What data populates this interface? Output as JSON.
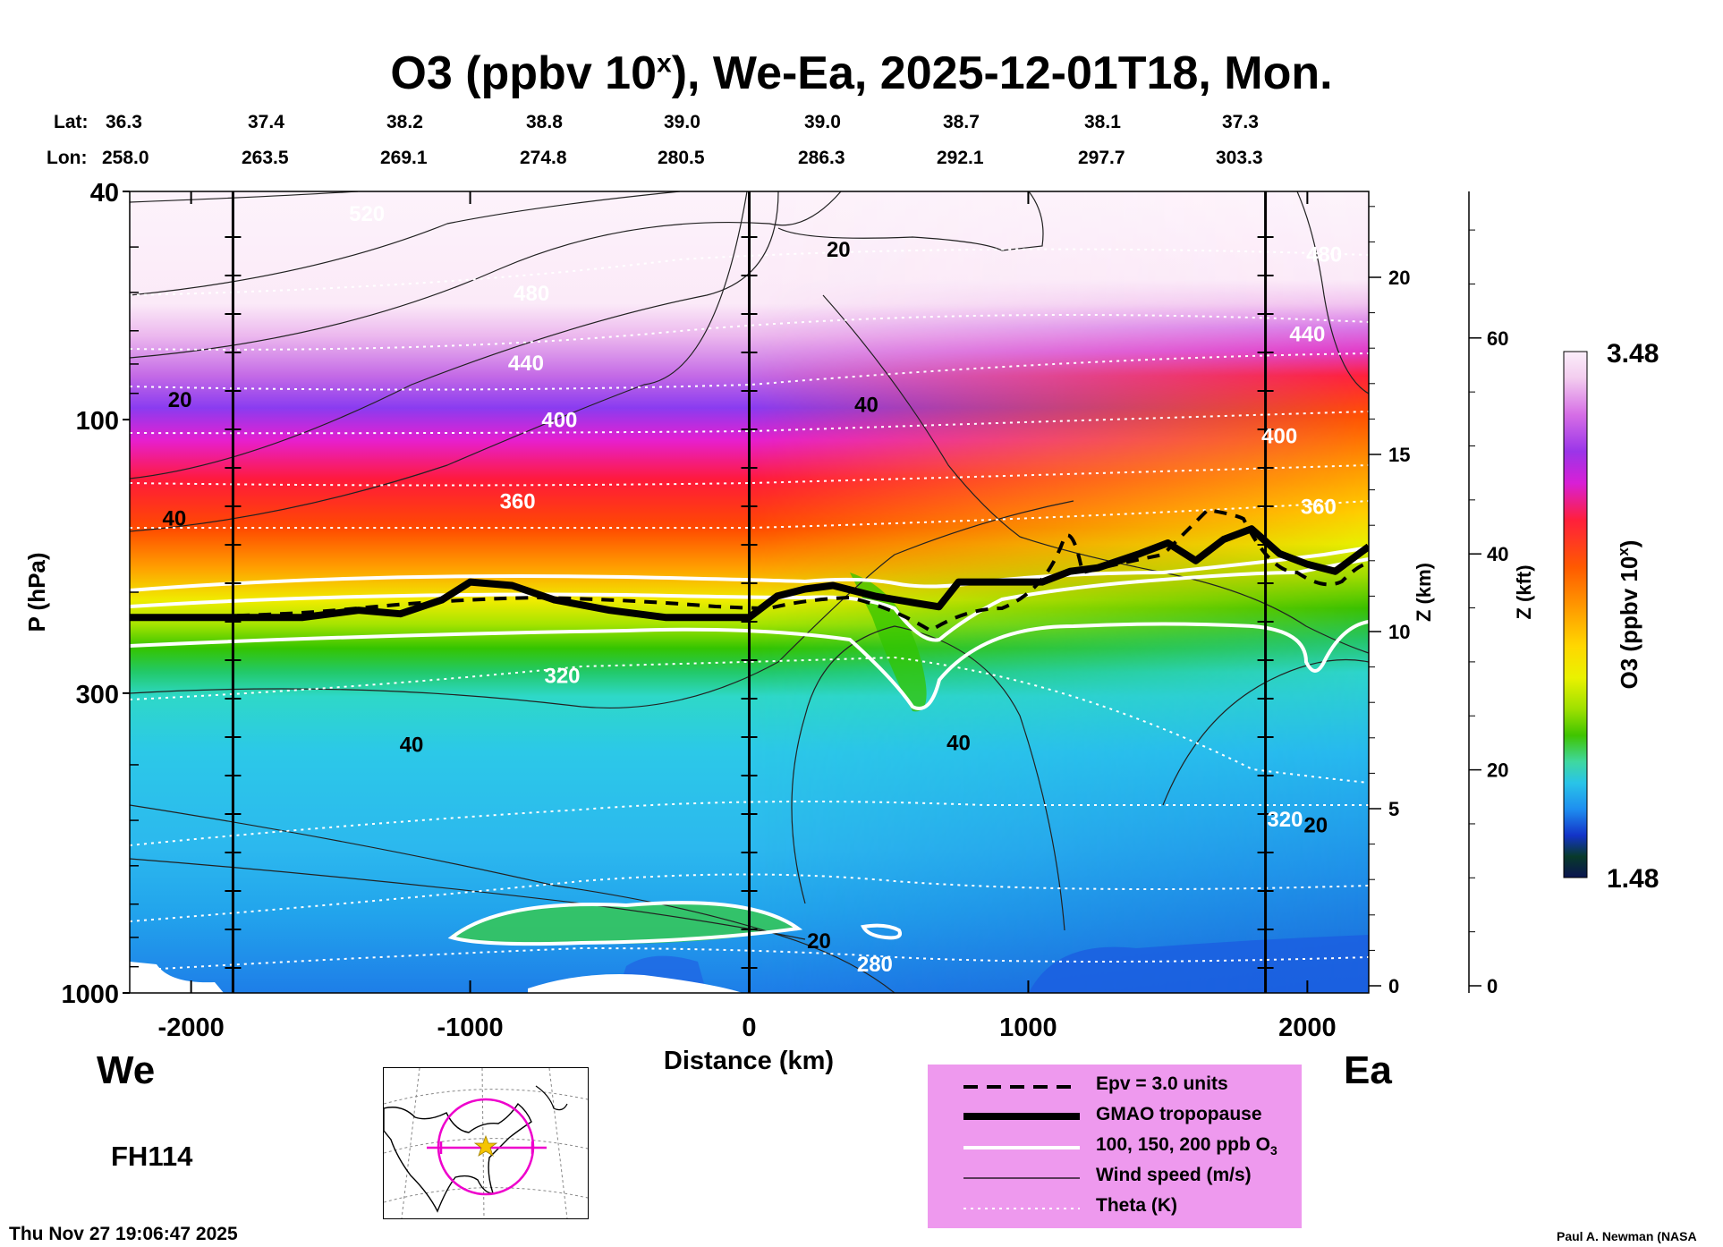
{
  "title": "O3 (ppbv 10",
  "title_sup": "x",
  "title_rest": "), We-Ea, 2025-12-01T18, Mon.",
  "lat_label": "Lat:",
  "lon_label": "Lon:",
  "lats": [
    "36.3",
    "37.4",
    "38.2",
    "38.8",
    "39.0",
    "39.0",
    "38.7",
    "38.1",
    "37.3"
  ],
  "lons": [
    "258.0",
    "263.5",
    "269.1",
    "274.8",
    "280.5",
    "286.3",
    "292.1",
    "297.7",
    "303.3"
  ],
  "west_label": "We",
  "east_label": "Ea",
  "forecast_hour": "FH114",
  "timestamp": "Thu Nov 27 19:06:47 2025",
  "credit": "Paul A. Newman (NASA",
  "colors": {
    "tropopause": "#000000",
    "theta": "#ffffff",
    "legend_bg": "#ee99ee",
    "star": "#f5c400",
    "circle": "#ee00cc"
  },
  "legend": [
    {
      "label": "Epv = 3.0 units",
      "style": "dashed"
    },
    {
      "label": "GMAO tropopause",
      "style": "thick"
    },
    {
      "label": "100, 150, 200 ppb O",
      "sub": "3",
      "style": "white"
    },
    {
      "label": "Wind speed (m/s)",
      "style": "thin"
    },
    {
      "label": "Theta (K)",
      "style": "dotted"
    }
  ],
  "chart_data": {
    "type": "heatmap",
    "title": "O3 (ppbv 10^x), We-Ea, 2025-12-01T18, Mon.",
    "xlabel": "Distance (km)",
    "ylabel": "P (hPa)",
    "y2label": "Z (km)",
    "y3label": "Z (kft)",
    "colorbar_label": "O3 (ppbv 10",
    "colorbar_label_sup": "x",
    "colorbar_label_end": ")",
    "colorbar_range": [
      "1.48",
      "3.48"
    ],
    "xlim": [
      -2220,
      2220
    ],
    "ylim": [
      1000,
      40
    ],
    "x_ticks": [
      "-2000",
      "-1000",
      "0",
      "1000",
      "2000"
    ],
    "x_tick_values": [
      -2000,
      -1000,
      0,
      1000,
      2000
    ],
    "p_ticks": [
      "40",
      "100",
      "300",
      "1000"
    ],
    "p_tick_values": [
      40,
      100,
      300,
      1000
    ],
    "z_km_ticks": [
      "0",
      "5",
      "10",
      "15",
      "20"
    ],
    "z_km_values": [
      0,
      5,
      10,
      15,
      20
    ],
    "z_kft_ticks": [
      "0",
      "20",
      "40",
      "60"
    ],
    "z_kft_values": [
      0,
      20,
      40,
      60
    ],
    "section_markers_km": [
      -1850,
      0,
      1850
    ],
    "tropopause_km": {
      "x": [
        -2220,
        -1600,
        -1400,
        -1250,
        -1100,
        -1000,
        -850,
        -700,
        -500,
        -300,
        0,
        100,
        200,
        300,
        450,
        600,
        680,
        750,
        850,
        950,
        1050,
        1150,
        1250,
        1400,
        1500,
        1600,
        1700,
        1800,
        1900,
        2000,
        2100,
        2220
      ],
      "z": [
        10.4,
        10.4,
        10.6,
        10.5,
        10.9,
        11.4,
        11.3,
        10.9,
        10.6,
        10.4,
        10.4,
        11.0,
        11.2,
        11.3,
        11.0,
        10.8,
        10.7,
        11.4,
        11.4,
        11.4,
        11.4,
        11.7,
        11.8,
        12.2,
        12.5,
        12.0,
        12.6,
        12.9,
        12.2,
        11.9,
        11.7,
        12.4
      ]
    },
    "contour_labels": [
      {
        "text": "520",
        "x": -1370,
        "p": 45,
        "color": "#ffffff"
      },
      {
        "text": "480",
        "x": -780,
        "p": 62,
        "color": "#ffffff"
      },
      {
        "text": "440",
        "x": -800,
        "p": 82,
        "color": "#ffffff"
      },
      {
        "text": "400",
        "x": -680,
        "p": 103,
        "color": "#ffffff"
      },
      {
        "text": "360",
        "x": -830,
        "p": 143,
        "color": "#ffffff"
      },
      {
        "text": "320",
        "x": -670,
        "p": 288,
        "color": "#ffffff"
      },
      {
        "text": "280",
        "x": 450,
        "p": 917,
        "color": "#ffffff"
      },
      {
        "text": "480",
        "x": 2060,
        "p": 53,
        "color": "#ffffff"
      },
      {
        "text": "440",
        "x": 2000,
        "p": 73,
        "color": "#ffffff"
      },
      {
        "text": "400",
        "x": 1900,
        "p": 110,
        "color": "#ffffff"
      },
      {
        "text": "360",
        "x": 2040,
        "p": 146,
        "color": "#ffffff"
      },
      {
        "text": "320",
        "x": 1920,
        "p": 513,
        "color": "#ffffff"
      },
      {
        "text": "20",
        "x": 320,
        "p": 52,
        "color": "#000000"
      },
      {
        "text": "20",
        "x": -2040,
        "p": 95,
        "color": "#000000"
      },
      {
        "text": "40",
        "x": -2060,
        "p": 153,
        "color": "#000000"
      },
      {
        "text": "40",
        "x": 420,
        "p": 97,
        "color": "#000000"
      },
      {
        "text": "40",
        "x": -1210,
        "p": 380,
        "color": "#000000"
      },
      {
        "text": "40",
        "x": 750,
        "p": 377,
        "color": "#000000"
      },
      {
        "text": "20",
        "x": 2030,
        "p": 525,
        "color": "#000000"
      },
      {
        "text": "20",
        "x": 250,
        "p": 835,
        "color": "#000000"
      }
    ]
  }
}
